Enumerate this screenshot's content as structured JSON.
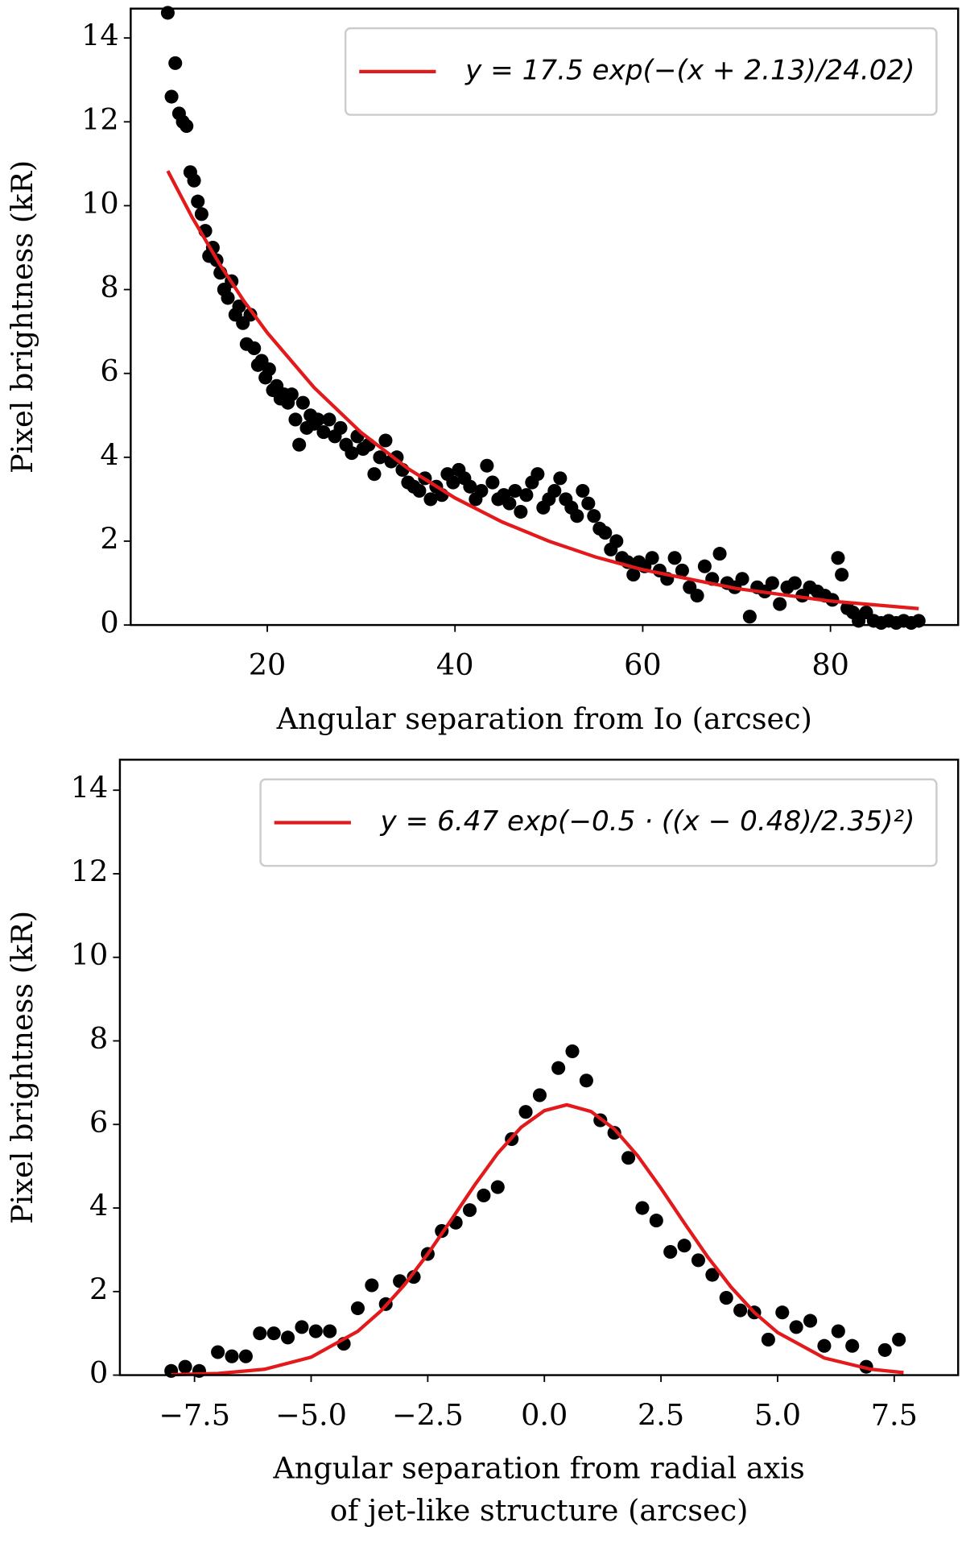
{
  "chart_data": [
    {
      "type": "scatter",
      "xlabel": [
        "Angular separation from Io (arcsec)"
      ],
      "ylabel": "Pixel brightness (kR)",
      "xlim": [
        5.45,
        93.6
      ],
      "ylim": [
        0,
        14.7
      ],
      "xticks": [
        20,
        40,
        60,
        80
      ],
      "yticks": [
        0,
        2,
        4,
        6,
        8,
        10,
        12,
        14
      ],
      "legend": "upper right",
      "points": {
        "color": "#000000",
        "x": [
          9.4,
          9.8,
          10.2,
          10.6,
          11.0,
          11.4,
          11.8,
          12.2,
          12.6,
          13.0,
          13.4,
          13.8,
          14.2,
          14.6,
          15.0,
          15.4,
          15.8,
          16.2,
          16.6,
          17.0,
          17.4,
          17.8,
          18.2,
          18.6,
          19.0,
          19.4,
          19.8,
          20.2,
          20.6,
          21.0,
          21.4,
          21.8,
          22.2,
          22.6,
          23.0,
          23.4,
          23.8,
          24.2,
          24.6,
          25.0,
          25.4,
          26.0,
          26.6,
          27.2,
          27.8,
          28.4,
          29.0,
          29.6,
          30.2,
          30.8,
          31.4,
          32.0,
          32.6,
          33.2,
          33.8,
          34.4,
          35.0,
          35.6,
          36.2,
          36.8,
          37.4,
          38.0,
          38.6,
          39.2,
          39.8,
          40.4,
          41.0,
          41.6,
          42.2,
          42.8,
          43.4,
          44.0,
          44.6,
          45.2,
          45.8,
          46.4,
          47.0,
          47.6,
          48.2,
          48.8,
          49.4,
          50.0,
          50.6,
          51.2,
          51.8,
          52.4,
          53.0,
          53.6,
          54.2,
          54.8,
          55.4,
          56.0,
          56.6,
          57.2,
          57.8,
          58.4,
          59.0,
          59.6,
          60.2,
          61.0,
          61.8,
          62.6,
          63.4,
          64.2,
          65.0,
          65.8,
          66.6,
          67.4,
          68.2,
          69.0,
          69.8,
          70.6,
          71.4,
          72.2,
          73.0,
          73.8,
          74.6,
          75.4,
          76.2,
          77.0,
          77.8,
          78.6,
          79.4,
          80.2,
          80.8,
          81.2,
          81.8,
          82.4,
          83.0,
          83.8,
          84.6,
          85.4,
          86.2,
          87.0,
          87.8,
          88.6,
          89.4
        ],
        "values": [
          14.6,
          12.6,
          13.4,
          12.2,
          12.0,
          11.9,
          10.8,
          10.6,
          10.1,
          9.8,
          9.4,
          8.8,
          9.0,
          8.7,
          8.4,
          8.0,
          7.8,
          8.2,
          7.4,
          7.6,
          7.2,
          6.7,
          7.4,
          6.6,
          6.2,
          6.3,
          5.9,
          6.1,
          5.6,
          5.7,
          5.4,
          5.5,
          5.3,
          5.5,
          4.9,
          4.3,
          5.3,
          4.7,
          5.0,
          4.8,
          4.9,
          4.6,
          4.9,
          4.5,
          4.7,
          4.3,
          4.1,
          4.5,
          4.2,
          4.3,
          3.6,
          4.0,
          4.4,
          3.9,
          4.0,
          3.7,
          3.4,
          3.3,
          3.2,
          3.5,
          3.0,
          3.3,
          3.1,
          3.6,
          3.4,
          3.7,
          3.5,
          3.3,
          3.0,
          3.2,
          3.8,
          3.4,
          3.0,
          3.1,
          2.9,
          3.2,
          2.7,
          3.1,
          3.4,
          3.6,
          2.8,
          3.0,
          3.2,
          3.5,
          3.0,
          2.8,
          2.6,
          3.2,
          2.9,
          2.6,
          2.3,
          2.2,
          1.8,
          2.0,
          1.6,
          1.5,
          1.2,
          1.5,
          1.4,
          1.6,
          1.3,
          1.1,
          1.6,
          1.3,
          0.9,
          0.7,
          1.4,
          1.1,
          1.7,
          1.0,
          0.9,
          1.1,
          0.2,
          0.9,
          0.8,
          1.0,
          0.5,
          0.9,
          1.0,
          0.7,
          0.9,
          0.8,
          0.7,
          0.6,
          1.6,
          1.2,
          0.4,
          0.3,
          0.1,
          0.3,
          0.1,
          0.05,
          0.1,
          0.05,
          0.1,
          0.05,
          0.1
        ]
      },
      "fit": {
        "name": "y = 17.5 exp(−(x + 2.13)/24.02)",
        "color": "#e31a1c",
        "x": [
          9.4,
          12,
          15,
          17.5,
          20,
          25,
          30,
          35,
          40,
          45,
          50,
          55,
          60,
          70,
          80,
          89.4
        ],
        "values": [
          10.83,
          9.72,
          8.58,
          7.73,
          6.97,
          5.66,
          4.59,
          3.73,
          3.03,
          2.46,
          2.0,
          1.62,
          1.32,
          0.87,
          0.57,
          0.39
        ]
      }
    },
    {
      "type": "scatter",
      "xlabel": [
        "Angular separation from radial axis",
        "of jet-like structure (arcsec)"
      ],
      "ylabel": "Pixel brightness (kR)",
      "xlim": [
        -9.1,
        8.87
      ],
      "ylim": [
        0,
        14.73
      ],
      "xticks": [
        {
          "value": -7.5,
          "label": "−7.5"
        },
        {
          "value": -5,
          "label": "−5.0"
        },
        {
          "value": -2.5,
          "label": "−2.5"
        },
        {
          "value": 0,
          "label": "0.0"
        },
        2.5,
        {
          "value": 5,
          "label": "5.0"
        },
        7.5
      ],
      "yticks": [
        0,
        2,
        4,
        6,
        8,
        10,
        12,
        14
      ],
      "legend": "upper right",
      "points": {
        "color": "#000000",
        "x": [
          -8.0,
          -7.7,
          -7.4,
          -7.0,
          -6.7,
          -6.4,
          -6.1,
          -5.8,
          -5.5,
          -5.2,
          -4.9,
          -4.6,
          -4.3,
          -4.0,
          -3.7,
          -3.4,
          -3.1,
          -2.8,
          -2.5,
          -2.2,
          -1.9,
          -1.6,
          -1.3,
          -1.0,
          -0.7,
          -0.4,
          -0.1,
          0.3,
          0.6,
          0.9,
          1.2,
          1.5,
          1.8,
          2.1,
          2.4,
          2.7,
          3.0,
          3.3,
          3.6,
          3.9,
          4.2,
          4.5,
          4.8,
          5.1,
          5.4,
          5.7,
          6.0,
          6.3,
          6.6,
          6.9,
          7.3,
          7.6
        ],
        "values": [
          0.1,
          0.2,
          0.1,
          0.55,
          0.45,
          0.45,
          1.0,
          1.0,
          0.9,
          1.15,
          1.05,
          1.05,
          0.75,
          1.6,
          2.15,
          1.7,
          2.25,
          2.35,
          2.9,
          3.45,
          3.65,
          3.95,
          4.3,
          4.5,
          5.65,
          6.3,
          6.7,
          7.35,
          7.75,
          7.05,
          6.1,
          5.8,
          5.2,
          4.0,
          3.7,
          2.95,
          3.1,
          2.75,
          2.4,
          1.85,
          1.55,
          1.5,
          0.85,
          1.5,
          1.15,
          1.3,
          0.7,
          1.05,
          0.7,
          0.2,
          0.6,
          0.85
        ]
      },
      "fit": {
        "name": "y = 6.47 exp(−0.5 · ((x − 0.48)/2.35)²)",
        "color": "#e31a1c",
        "x": [
          -8,
          -7,
          -6,
          -5,
          -4,
          -3.5,
          -3,
          -2.5,
          -2,
          -1.5,
          -1,
          -0.5,
          0,
          0.48,
          1,
          1.5,
          2,
          2.5,
          3,
          3.5,
          4,
          4.5,
          5,
          6,
          7,
          7.7
        ],
        "values": [
          0.01,
          0.04,
          0.14,
          0.43,
          1.05,
          1.54,
          2.16,
          2.9,
          3.71,
          4.54,
          5.31,
          5.93,
          6.33,
          6.47,
          6.31,
          5.89,
          5.25,
          4.47,
          3.64,
          2.83,
          2.11,
          1.5,
          1.02,
          0.41,
          0.14,
          0.06
        ]
      }
    }
  ]
}
